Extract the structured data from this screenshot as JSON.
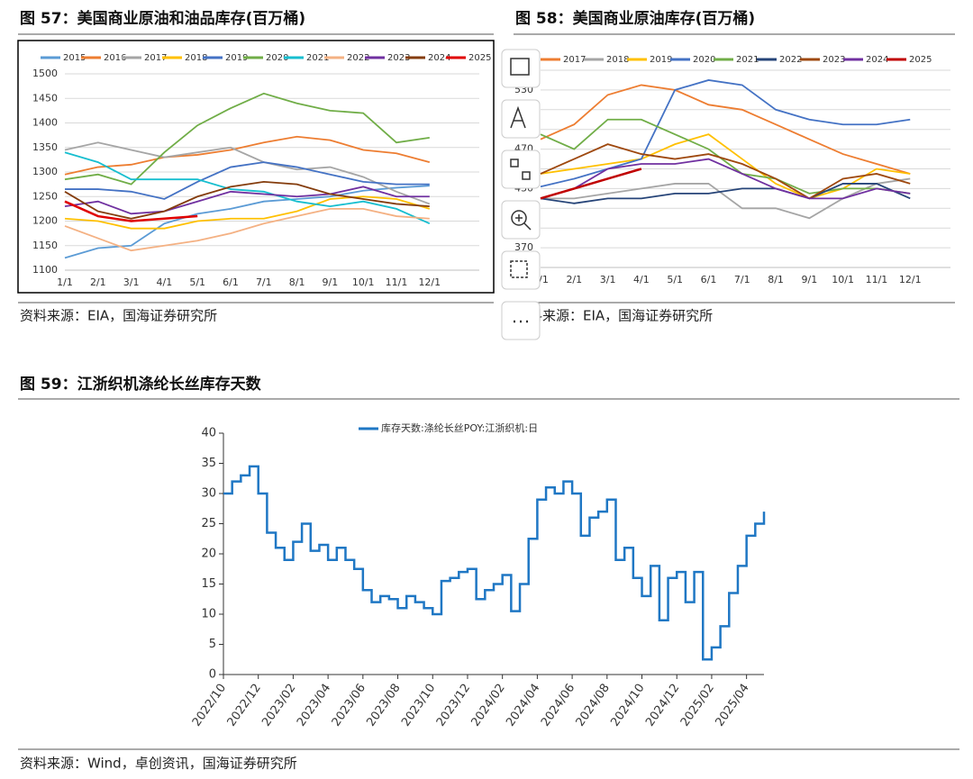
{
  "chart_data": [
    {
      "type": "line",
      "title": "图 57：美国商业原油和油品库存(百万桶)",
      "source": "资料来源：EIA，国海证券研究所",
      "categories": [
        "1/1",
        "2/1",
        "3/1",
        "4/1",
        "5/1",
        "6/1",
        "7/1",
        "8/1",
        "9/1",
        "10/1",
        "11/1",
        "12/1"
      ],
      "ylim": [
        1100,
        1500
      ],
      "yticks": [
        1100,
        1150,
        1200,
        1250,
        1300,
        1350,
        1400,
        1450,
        1500
      ],
      "grid": true,
      "legend": "top",
      "series": [
        {
          "name": "2015",
          "color": "#5b9bd5",
          "values": [
            1125,
            1145,
            1150,
            1195,
            1215,
            1225,
            1240,
            1245,
            1250,
            1262,
            1268,
            1272
          ]
        },
        {
          "name": "2016",
          "color": "#ed7d31",
          "values": [
            1295,
            1310,
            1315,
            1330,
            1335,
            1345,
            1360,
            1372,
            1365,
            1345,
            1338,
            1320
          ]
        },
        {
          "name": "2017",
          "color": "#a5a5a5",
          "values": [
            1345,
            1360,
            1345,
            1330,
            1340,
            1350,
            1320,
            1305,
            1310,
            1290,
            1260,
            1235
          ]
        },
        {
          "name": "2018",
          "color": "#ffc000",
          "values": [
            1205,
            1200,
            1185,
            1185,
            1200,
            1205,
            1205,
            1220,
            1245,
            1250,
            1245,
            1225
          ]
        },
        {
          "name": "2019",
          "color": "#4472c4",
          "values": [
            1265,
            1265,
            1260,
            1245,
            1280,
            1310,
            1320,
            1310,
            1295,
            1280,
            1275,
            1275
          ]
        },
        {
          "name": "2020",
          "color": "#70ad47",
          "values": [
            1285,
            1295,
            1275,
            1340,
            1395,
            1430,
            1460,
            1440,
            1425,
            1420,
            1360,
            1370
          ]
        },
        {
          "name": "2021",
          "color": "#17becf",
          "values": [
            1340,
            1320,
            1285,
            1285,
            1285,
            1265,
            1260,
            1240,
            1230,
            1240,
            1225,
            1195
          ]
        },
        {
          "name": "2022",
          "color": "#f4b183",
          "values": [
            1190,
            1165,
            1140,
            1150,
            1160,
            1175,
            1195,
            1210,
            1225,
            1225,
            1210,
            1205
          ]
        },
        {
          "name": "2023",
          "color": "#7030a0",
          "values": [
            1230,
            1240,
            1215,
            1220,
            1240,
            1260,
            1255,
            1250,
            1255,
            1270,
            1250,
            1250
          ]
        },
        {
          "name": "2024",
          "color": "#843c0c",
          "values": [
            1260,
            1220,
            1205,
            1220,
            1250,
            1270,
            1280,
            1275,
            1255,
            1245,
            1235,
            1230
          ]
        },
        {
          "name": "2025",
          "color": "#e00000",
          "values": [
            1240,
            1210,
            1200,
            1205,
            1210,
            null,
            null,
            null,
            null,
            null,
            null,
            null
          ]
        }
      ]
    },
    {
      "type": "line",
      "title": "图 58：美国商业原油库存(百万桶)",
      "source": "资料来源：EIA，国海证券研究所",
      "categories": [
        "1/1",
        "2/1",
        "3/1",
        "4/1",
        "5/1",
        "6/1",
        "7/1",
        "8/1",
        "9/1",
        "10/1",
        "11/1",
        "12/1"
      ],
      "ylim": [
        350,
        550
      ],
      "yticks": [
        350,
        370,
        390,
        410,
        430,
        450,
        470,
        490,
        510,
        530,
        550
      ],
      "grid": true,
      "legend": "top",
      "series": [
        {
          "name": "2017",
          "color": "#ed7d31",
          "values": [
            480,
            495,
            525,
            535,
            530,
            515,
            510,
            495,
            480,
            465,
            455,
            445
          ]
        },
        {
          "name": "2018",
          "color": "#a5a5a5",
          "values": [
            420,
            420,
            425,
            430,
            435,
            435,
            410,
            410,
            400,
            420,
            435,
            440
          ]
        },
        {
          "name": "2019",
          "color": "#ffc000",
          "values": [
            445,
            450,
            455,
            460,
            475,
            485,
            460,
            435,
            420,
            430,
            450,
            445
          ]
        },
        {
          "name": "2020",
          "color": "#4472c4",
          "values": [
            432,
            440,
            450,
            460,
            530,
            540,
            535,
            510,
            500,
            495,
            495,
            500
          ]
        },
        {
          "name": "2021",
          "color": "#70ad47",
          "values": [
            485,
            470,
            500,
            500,
            485,
            470,
            445,
            440,
            425,
            430,
            430,
            425
          ]
        },
        {
          "name": "2022",
          "color": "#264478",
          "values": [
            420,
            415,
            420,
            420,
            425,
            425,
            430,
            430,
            420,
            435,
            435,
            420
          ]
        },
        {
          "name": "2023",
          "color": "#9e480e",
          "values": [
            445,
            460,
            475,
            465,
            460,
            465,
            455,
            440,
            420,
            440,
            445,
            435
          ]
        },
        {
          "name": "2024",
          "color": "#7030a0",
          "values": [
            420,
            430,
            450,
            455,
            455,
            460,
            445,
            430,
            420,
            420,
            430,
            425
          ]
        },
        {
          "name": "2025",
          "color": "#c00000",
          "values": [
            420,
            430,
            440,
            450,
            null,
            null,
            null,
            null,
            null,
            null,
            null,
            null
          ]
        }
      ]
    },
    {
      "type": "step",
      "title": "图 59：江浙织机涤纶长丝库存天数",
      "source": "资料来源：Wind，卓创资讯，国海证券研究所",
      "categories": [
        "2022/10",
        null,
        null,
        null,
        "2022/12",
        null,
        null,
        null,
        "2023/02",
        null,
        null,
        null,
        "2023/04",
        null,
        null,
        null,
        "2023/06",
        null,
        null,
        null,
        "2023/08",
        null,
        null,
        null,
        "2023/10",
        null,
        null,
        null,
        "2023/12",
        null,
        null,
        null,
        "2024/02",
        null,
        null,
        null,
        "2024/04",
        null,
        null,
        null,
        "2024/06",
        null,
        null,
        null,
        "2024/08",
        null,
        null,
        null,
        "2024/10",
        null,
        null,
        null,
        "2024/12",
        null,
        null,
        null,
        "2025/02",
        null,
        null,
        null,
        "2025/04",
        null,
        null
      ],
      "ylim": [
        0,
        40
      ],
      "yticks": [
        0,
        5,
        10,
        15,
        20,
        25,
        30,
        35,
        40
      ],
      "grid": false,
      "legend": "top",
      "series": [
        {
          "name": "库存天数:涤纶长丝POY:江浙织机:日",
          "color": "#1f77c4",
          "values": [
            30,
            32,
            33,
            34.5,
            30,
            23.5,
            21,
            19,
            22,
            25,
            20.5,
            21.5,
            19,
            21,
            19,
            17.5,
            14,
            12,
            13,
            12.5,
            11,
            13,
            12,
            11,
            10,
            15.5,
            16,
            17,
            17.5,
            12.5,
            14,
            15,
            16.5,
            10.5,
            15,
            22.5,
            29,
            31,
            30,
            32,
            30,
            23,
            26,
            27,
            29,
            19,
            21,
            16,
            13,
            18,
            9,
            16,
            17,
            12,
            17,
            2.5,
            4.5,
            8,
            13.5,
            18,
            23,
            25,
            27
          ]
        }
      ]
    }
  ]
}
